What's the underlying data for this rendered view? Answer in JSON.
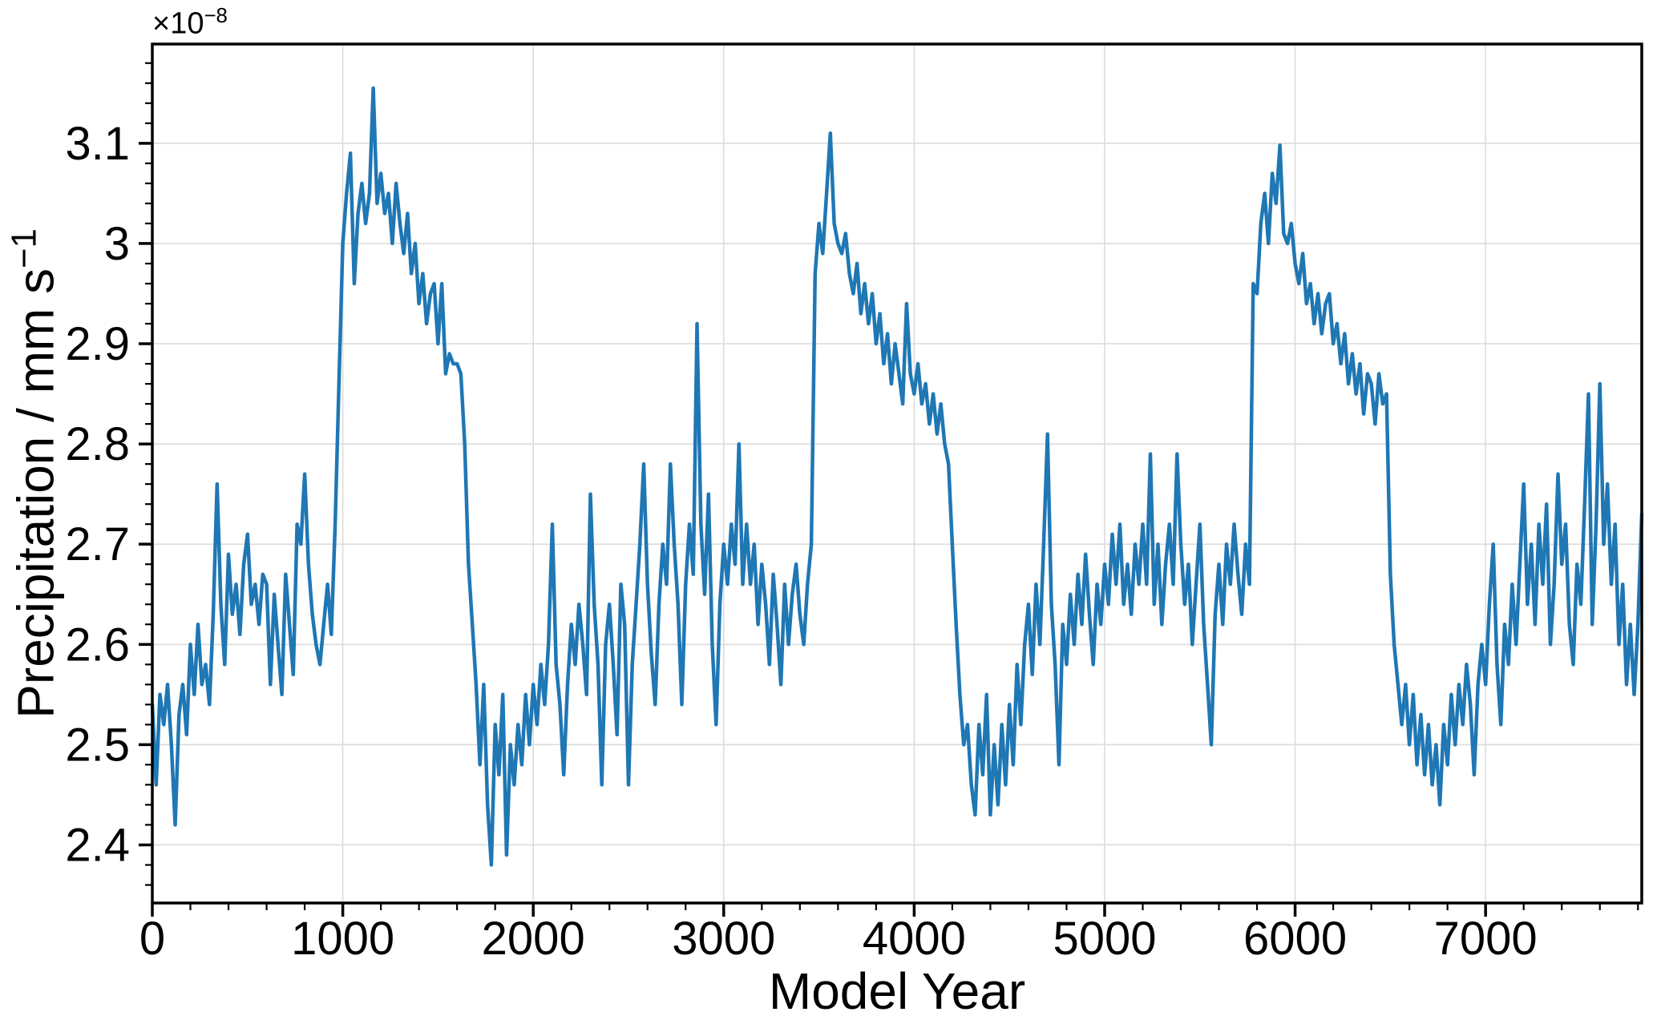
{
  "chart_data": {
    "type": "line",
    "title": "",
    "xlabel": "Model Year",
    "ylabel": "Precipitation / mm s⁻¹",
    "ylabel_base": "Precipitation / mm s",
    "ylabel_sup": "−1",
    "y_offset_base": "×10",
    "y_offset_sup": "−8",
    "xlim": [
      0,
      7820
    ],
    "ylim": [
      2.342,
      3.199
    ],
    "x_ticks": [
      0,
      1000,
      2000,
      3000,
      4000,
      5000,
      6000,
      7000
    ],
    "x_tick_labels": [
      "0",
      "1000",
      "2000",
      "3000",
      "4000",
      "5000",
      "6000",
      "7000"
    ],
    "x_minor_step": 200,
    "y_ticks": [
      2.4,
      2.5,
      2.6,
      2.7,
      2.8,
      2.9,
      3.0,
      3.1
    ],
    "y_tick_labels": [
      "2.4",
      "2.5",
      "2.6",
      "2.7",
      "2.8",
      "2.9",
      "3",
      "3.1"
    ],
    "y_minor_step": 0.02,
    "grid": true,
    "legend": "none",
    "line_color": "#1f77b4",
    "series": [
      {
        "name": "precipitation",
        "x_start": 0,
        "x_step": 20,
        "y": [
          2.54,
          2.46,
          2.55,
          2.52,
          2.56,
          2.5,
          2.42,
          2.53,
          2.56,
          2.51,
          2.6,
          2.55,
          2.62,
          2.56,
          2.58,
          2.54,
          2.63,
          2.76,
          2.64,
          2.58,
          2.69,
          2.63,
          2.66,
          2.61,
          2.68,
          2.71,
          2.64,
          2.66,
          2.62,
          2.67,
          2.66,
          2.56,
          2.65,
          2.6,
          2.55,
          2.67,
          2.62,
          2.57,
          2.72,
          2.7,
          2.77,
          2.68,
          2.63,
          2.6,
          2.58,
          2.62,
          2.66,
          2.61,
          2.72,
          2.86,
          3.0,
          3.05,
          3.09,
          2.96,
          3.03,
          3.06,
          3.02,
          3.05,
          3.155,
          3.04,
          3.07,
          3.03,
          3.05,
          3.0,
          3.06,
          3.02,
          2.99,
          3.03,
          2.97,
          3.0,
          2.94,
          2.97,
          2.92,
          2.95,
          2.96,
          2.9,
          2.96,
          2.87,
          2.89,
          2.88,
          2.88,
          2.87,
          2.8,
          2.68,
          2.62,
          2.56,
          2.48,
          2.56,
          2.44,
          2.38,
          2.52,
          2.47,
          2.55,
          2.39,
          2.5,
          2.46,
          2.52,
          2.48,
          2.55,
          2.5,
          2.56,
          2.52,
          2.58,
          2.54,
          2.6,
          2.72,
          2.58,
          2.54,
          2.47,
          2.56,
          2.62,
          2.58,
          2.64,
          2.6,
          2.55,
          2.75,
          2.64,
          2.58,
          2.46,
          2.6,
          2.64,
          2.58,
          2.51,
          2.66,
          2.62,
          2.46,
          2.58,
          2.64,
          2.7,
          2.78,
          2.66,
          2.59,
          2.54,
          2.64,
          2.7,
          2.66,
          2.78,
          2.7,
          2.64,
          2.54,
          2.66,
          2.72,
          2.67,
          2.92,
          2.72,
          2.65,
          2.75,
          2.6,
          2.52,
          2.64,
          2.7,
          2.66,
          2.72,
          2.68,
          2.8,
          2.66,
          2.72,
          2.66,
          2.7,
          2.62,
          2.68,
          2.64,
          2.58,
          2.67,
          2.62,
          2.56,
          2.66,
          2.6,
          2.65,
          2.68,
          2.63,
          2.6,
          2.66,
          2.7,
          2.97,
          3.02,
          2.99,
          3.05,
          3.11,
          3.02,
          3.0,
          2.99,
          3.01,
          2.97,
          2.95,
          2.98,
          2.93,
          2.96,
          2.92,
          2.95,
          2.9,
          2.93,
          2.88,
          2.91,
          2.86,
          2.9,
          2.87,
          2.84,
          2.94,
          2.87,
          2.85,
          2.88,
          2.84,
          2.86,
          2.82,
          2.85,
          2.81,
          2.84,
          2.8,
          2.78,
          2.7,
          2.62,
          2.55,
          2.5,
          2.52,
          2.46,
          2.43,
          2.52,
          2.47,
          2.55,
          2.43,
          2.5,
          2.44,
          2.52,
          2.46,
          2.54,
          2.48,
          2.58,
          2.52,
          2.6,
          2.64,
          2.57,
          2.66,
          2.6,
          2.7,
          2.81,
          2.64,
          2.58,
          2.48,
          2.62,
          2.58,
          2.65,
          2.6,
          2.67,
          2.62,
          2.69,
          2.63,
          2.58,
          2.66,
          2.62,
          2.68,
          2.64,
          2.71,
          2.66,
          2.72,
          2.64,
          2.68,
          2.63,
          2.7,
          2.66,
          2.72,
          2.66,
          2.79,
          2.64,
          2.7,
          2.62,
          2.68,
          2.72,
          2.66,
          2.79,
          2.7,
          2.64,
          2.68,
          2.6,
          2.66,
          2.72,
          2.62,
          2.56,
          2.5,
          2.63,
          2.68,
          2.62,
          2.7,
          2.66,
          2.72,
          2.67,
          2.63,
          2.7,
          2.66,
          2.96,
          2.95,
          3.02,
          3.05,
          3.0,
          3.07,
          3.04,
          3.098,
          3.01,
          3.0,
          3.02,
          2.98,
          2.96,
          2.99,
          2.94,
          2.96,
          2.92,
          2.95,
          2.91,
          2.94,
          2.95,
          2.9,
          2.92,
          2.88,
          2.91,
          2.86,
          2.89,
          2.85,
          2.88,
          2.83,
          2.87,
          2.86,
          2.82,
          2.87,
          2.84,
          2.85,
          2.67,
          2.6,
          2.56,
          2.52,
          2.56,
          2.5,
          2.55,
          2.48,
          2.53,
          2.47,
          2.52,
          2.46,
          2.5,
          2.44,
          2.52,
          2.48,
          2.55,
          2.5,
          2.56,
          2.52,
          2.58,
          2.54,
          2.47,
          2.56,
          2.6,
          2.56,
          2.64,
          2.7,
          2.58,
          2.52,
          2.62,
          2.58,
          2.66,
          2.6,
          2.68,
          2.76,
          2.64,
          2.7,
          2.62,
          2.72,
          2.66,
          2.74,
          2.6,
          2.66,
          2.77,
          2.68,
          2.72,
          2.62,
          2.58,
          2.68,
          2.64,
          2.74,
          2.85,
          2.62,
          2.72,
          2.86,
          2.7,
          2.76,
          2.66,
          2.72,
          2.6,
          2.66,
          2.56,
          2.62,
          2.55,
          2.62,
          2.73
        ]
      }
    ]
  }
}
